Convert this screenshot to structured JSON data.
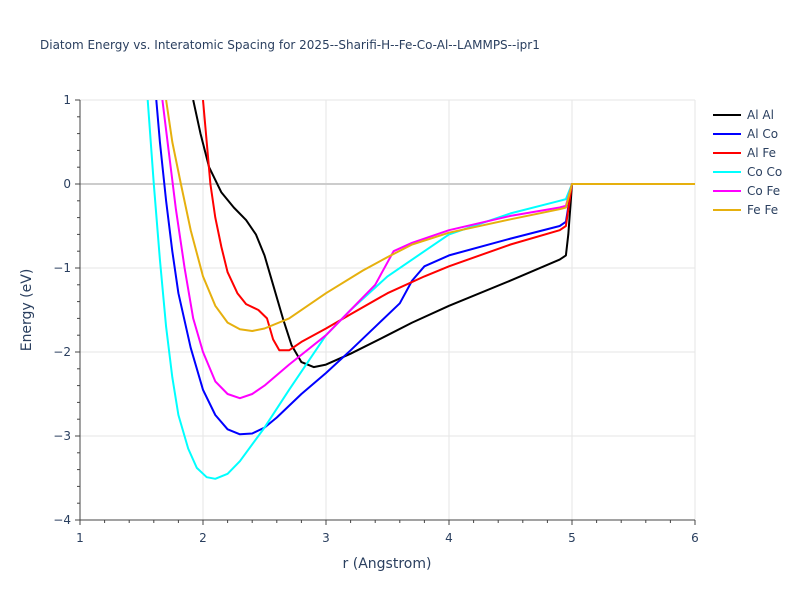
{
  "chart_data": {
    "type": "line",
    "title": "Diatom Energy vs. Interatomic Spacing for 2025--Sharifi-H--Fe-Co-Al--LAMMPS--ipr1",
    "xlabel": "r (Angstrom)",
    "ylabel": "Energy (eV)",
    "xlim": [
      1,
      6
    ],
    "ylim": [
      -4,
      1
    ],
    "x_ticks": [
      1,
      2,
      3,
      4,
      5,
      6
    ],
    "y_ticks": [
      -4,
      -3,
      -2,
      -1,
      0,
      1
    ],
    "grid": true,
    "legend_position": "top-right",
    "series": [
      {
        "name": "Al Al",
        "color": "#000000",
        "points": [
          [
            1.92,
            1.0
          ],
          [
            1.98,
            0.6
          ],
          [
            2.05,
            0.2
          ],
          [
            2.15,
            -0.1
          ],
          [
            2.25,
            -0.28
          ],
          [
            2.35,
            -0.43
          ],
          [
            2.43,
            -0.6
          ],
          [
            2.5,
            -0.85
          ],
          [
            2.57,
            -1.2
          ],
          [
            2.65,
            -1.6
          ],
          [
            2.72,
            -1.92
          ],
          [
            2.8,
            -2.12
          ],
          [
            2.9,
            -2.18
          ],
          [
            3.0,
            -2.15
          ],
          [
            3.2,
            -2.02
          ],
          [
            3.5,
            -1.8
          ],
          [
            3.7,
            -1.65
          ],
          [
            4.0,
            -1.45
          ],
          [
            4.5,
            -1.15
          ],
          [
            4.9,
            -0.9
          ],
          [
            4.95,
            -0.85
          ],
          [
            4.97,
            -0.6
          ],
          [
            4.99,
            -0.2
          ],
          [
            5.0,
            0
          ],
          [
            6.0,
            0
          ]
        ]
      },
      {
        "name": "Al Co",
        "color": "#0000ff",
        "points": [
          [
            1.62,
            1.0
          ],
          [
            1.65,
            0.5
          ],
          [
            1.7,
            -0.2
          ],
          [
            1.75,
            -0.8
          ],
          [
            1.8,
            -1.3
          ],
          [
            1.9,
            -1.95
          ],
          [
            2.0,
            -2.45
          ],
          [
            2.1,
            -2.75
          ],
          [
            2.2,
            -2.92
          ],
          [
            2.3,
            -2.98
          ],
          [
            2.4,
            -2.97
          ],
          [
            2.5,
            -2.9
          ],
          [
            2.6,
            -2.78
          ],
          [
            2.8,
            -2.5
          ],
          [
            3.0,
            -2.25
          ],
          [
            3.2,
            -1.98
          ],
          [
            3.4,
            -1.7
          ],
          [
            3.6,
            -1.42
          ],
          [
            3.7,
            -1.15
          ],
          [
            3.8,
            -0.98
          ],
          [
            4.0,
            -0.85
          ],
          [
            4.5,
            -0.65
          ],
          [
            4.9,
            -0.5
          ],
          [
            4.95,
            -0.45
          ],
          [
            5.0,
            0
          ],
          [
            6.0,
            0
          ]
        ]
      },
      {
        "name": "Al Fe",
        "color": "#ff0000",
        "points": [
          [
            2.0,
            1.0
          ],
          [
            2.03,
            0.5
          ],
          [
            2.06,
            0.0
          ],
          [
            2.1,
            -0.4
          ],
          [
            2.15,
            -0.75
          ],
          [
            2.2,
            -1.05
          ],
          [
            2.28,
            -1.3
          ],
          [
            2.35,
            -1.43
          ],
          [
            2.45,
            -1.5
          ],
          [
            2.52,
            -1.6
          ],
          [
            2.57,
            -1.85
          ],
          [
            2.62,
            -1.98
          ],
          [
            2.7,
            -1.98
          ],
          [
            2.8,
            -1.88
          ],
          [
            3.0,
            -1.72
          ],
          [
            3.2,
            -1.55
          ],
          [
            3.5,
            -1.3
          ],
          [
            3.8,
            -1.1
          ],
          [
            4.0,
            -0.98
          ],
          [
            4.5,
            -0.72
          ],
          [
            4.9,
            -0.55
          ],
          [
            4.95,
            -0.5
          ],
          [
            5.0,
            0
          ],
          [
            6.0,
            0
          ]
        ]
      },
      {
        "name": "Co Co",
        "color": "#00ffff",
        "points": [
          [
            1.55,
            1.0
          ],
          [
            1.6,
            0.0
          ],
          [
            1.65,
            -0.9
          ],
          [
            1.7,
            -1.7
          ],
          [
            1.75,
            -2.3
          ],
          [
            1.8,
            -2.75
          ],
          [
            1.88,
            -3.15
          ],
          [
            1.95,
            -3.38
          ],
          [
            2.03,
            -3.49
          ],
          [
            2.1,
            -3.51
          ],
          [
            2.2,
            -3.45
          ],
          [
            2.3,
            -3.3
          ],
          [
            2.5,
            -2.9
          ],
          [
            2.7,
            -2.45
          ],
          [
            3.0,
            -1.8
          ],
          [
            3.2,
            -1.5
          ],
          [
            3.5,
            -1.1
          ],
          [
            3.8,
            -0.8
          ],
          [
            4.0,
            -0.6
          ],
          [
            4.5,
            -0.35
          ],
          [
            4.9,
            -0.2
          ],
          [
            4.95,
            -0.18
          ],
          [
            5.0,
            0
          ],
          [
            6.0,
            0
          ]
        ]
      },
      {
        "name": "Co Fe",
        "color": "#ff00ff",
        "points": [
          [
            1.67,
            1.0
          ],
          [
            1.72,
            0.4
          ],
          [
            1.78,
            -0.3
          ],
          [
            1.85,
            -1.0
          ],
          [
            1.92,
            -1.6
          ],
          [
            2.0,
            -2.0
          ],
          [
            2.1,
            -2.35
          ],
          [
            2.2,
            -2.5
          ],
          [
            2.3,
            -2.55
          ],
          [
            2.4,
            -2.5
          ],
          [
            2.5,
            -2.4
          ],
          [
            2.7,
            -2.15
          ],
          [
            3.0,
            -1.8
          ],
          [
            3.2,
            -1.5
          ],
          [
            3.4,
            -1.2
          ],
          [
            3.55,
            -0.8
          ],
          [
            3.7,
            -0.7
          ],
          [
            4.0,
            -0.55
          ],
          [
            4.5,
            -0.38
          ],
          [
            4.9,
            -0.28
          ],
          [
            4.95,
            -0.26
          ],
          [
            5.0,
            0
          ],
          [
            6.0,
            0
          ]
        ]
      },
      {
        "name": "Fe Fe",
        "color": "#e6b00e",
        "points": [
          [
            1.7,
            1.0
          ],
          [
            1.75,
            0.5
          ],
          [
            1.82,
            0.0
          ],
          [
            1.9,
            -0.55
          ],
          [
            2.0,
            -1.1
          ],
          [
            2.1,
            -1.45
          ],
          [
            2.2,
            -1.65
          ],
          [
            2.3,
            -1.73
          ],
          [
            2.4,
            -1.75
          ],
          [
            2.5,
            -1.72
          ],
          [
            2.7,
            -1.6
          ],
          [
            3.0,
            -1.3
          ],
          [
            3.3,
            -1.03
          ],
          [
            3.5,
            -0.87
          ],
          [
            3.7,
            -0.72
          ],
          [
            4.0,
            -0.58
          ],
          [
            4.5,
            -0.42
          ],
          [
            4.9,
            -0.3
          ],
          [
            4.95,
            -0.28
          ],
          [
            5.0,
            0
          ],
          [
            6.0,
            0
          ]
        ]
      }
    ]
  }
}
